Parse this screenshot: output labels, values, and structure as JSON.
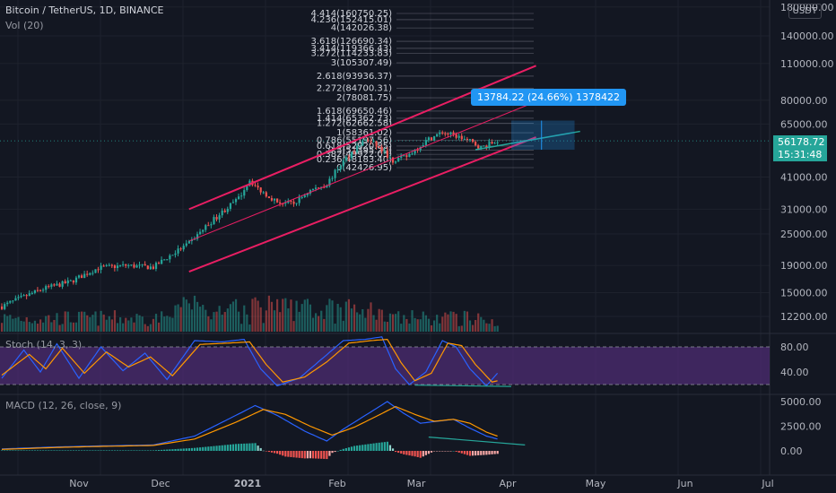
{
  "header": {
    "title": "Bitcoin / TetherUS, 1D, BINANCE",
    "volume_label": "Vol (20)",
    "currency_badge": "USDT"
  },
  "indicators": {
    "stoch_label": "Stoch (14, 3, 3)",
    "macd_label": "MACD (12, 26, close, 9)"
  },
  "last_price": {
    "value": "56178.72",
    "countdown": "15:31:48"
  },
  "measure_label": "13784.22 (24.66%) 1378422",
  "colors": {
    "background": "#131722",
    "up": "#26a69a",
    "down": "#ef5350",
    "channel": "#e91e63",
    "trendline": "#26a69a",
    "stoch_k": "#2962ff",
    "stoch_d": "#ff9800",
    "macd_line": "#2962ff",
    "signal_line": "#ff9800",
    "stoch_band": "#4a2a6e",
    "measure": "#2196f3"
  },
  "chart_data": [
    {
      "type": "candlestick",
      "title": "Bitcoin / TetherUS, 1D, BINANCE",
      "x_ticks": [
        "Nov",
        "Dec",
        "2021",
        "Feb",
        "Mar",
        "Apr",
        "May",
        "Jun",
        "Jul"
      ],
      "y_scale": "log",
      "y_ticks": [
        12200,
        15000,
        19000,
        25000,
        31000,
        41000,
        65000,
        80000,
        110000,
        140000,
        180000
      ],
      "y_tick_labels": [
        "12200.00",
        "15000.00",
        "19000.00",
        "25000.00",
        "31000.00",
        "41000.00",
        "65000.00",
        "80000.00",
        "110000.00",
        "140000.00",
        "180000.00"
      ],
      "close_waypoints": [
        [
          0,
          13300
        ],
        [
          15,
          15500
        ],
        [
          25,
          16500
        ],
        [
          35,
          18600
        ],
        [
          45,
          19000
        ],
        [
          55,
          18700
        ],
        [
          68,
          23000
        ],
        [
          78,
          29000
        ],
        [
          86,
          34000
        ],
        [
          90,
          40000
        ],
        [
          93,
          37000
        ],
        [
          100,
          33000
        ],
        [
          106,
          32500
        ],
        [
          112,
          36500
        ],
        [
          118,
          38500
        ],
        [
          124,
          47000
        ],
        [
          128,
          52000
        ],
        [
          132,
          57000
        ],
        [
          135,
          55000
        ],
        [
          142,
          47500
        ],
        [
          147,
          49000
        ],
        [
          155,
          57000
        ],
        [
          160,
          60500
        ],
        [
          165,
          58500
        ],
        [
          170,
          56000
        ],
        [
          174,
          53000
        ],
        [
          180,
          56178
        ]
      ],
      "fibonacci_levels": [
        {
          "ratio": "4.414",
          "price": "160750.25"
        },
        {
          "ratio": "4.236",
          "price": "152415.01"
        },
        {
          "ratio": "4",
          "price": "142026.38"
        },
        {
          "ratio": "3.618",
          "price": "126690.34"
        },
        {
          "ratio": "3.414",
          "price": "119366.43"
        },
        {
          "ratio": "3.272",
          "price": "114233.83"
        },
        {
          "ratio": "3",
          "price": "105307.49"
        },
        {
          "ratio": "2.618",
          "price": "93936.37"
        },
        {
          "ratio": "2.272",
          "price": "84700.31"
        },
        {
          "ratio": "2",
          "price": "78081.75"
        },
        {
          "ratio": "1.618",
          "price": "69650.46"
        },
        {
          "ratio": "1.414",
          "price": "65362.73"
        },
        {
          "ratio": "1.272",
          "price": "62662.58"
        },
        {
          "ratio": "1",
          "price": "58361.02"
        },
        {
          "ratio": "0.786",
          "price": "55197.56"
        },
        {
          "ratio": "0.618",
          "price": "52920.85"
        },
        {
          "ratio": "0.5",
          "price": "51395.20"
        },
        {
          "ratio": "0.382",
          "price": "49922.05"
        },
        {
          "ratio": "0.236",
          "price": "48183.40"
        },
        {
          "ratio": "0",
          "price": "42426.95"
        }
      ],
      "last_price": 56178.72
    },
    {
      "type": "line",
      "title": "Stoch (14, 3, 3)",
      "y_ticks": [
        40,
        80
      ],
      "y_tick_labels": [
        "40.00",
        "80.00"
      ],
      "band": [
        20,
        80
      ],
      "series": [
        {
          "name": "%K",
          "waypoints": [
            [
              0,
              30
            ],
            [
              8,
              75
            ],
            [
              14,
              40
            ],
            [
              20,
              85
            ],
            [
              28,
              30
            ],
            [
              36,
              80
            ],
            [
              44,
              42
            ],
            [
              52,
              70
            ],
            [
              60,
              28
            ],
            [
              70,
              90
            ],
            [
              80,
              88
            ],
            [
              88,
              92
            ],
            [
              94,
              45
            ],
            [
              100,
              18
            ],
            [
              108,
              30
            ],
            [
              116,
              60
            ],
            [
              124,
              90
            ],
            [
              132,
              92
            ],
            [
              138,
              96
            ],
            [
              143,
              45
            ],
            [
              148,
              20
            ],
            [
              154,
              40
            ],
            [
              160,
              90
            ],
            [
              165,
              80
            ],
            [
              170,
              45
            ],
            [
              176,
              18
            ],
            [
              180,
              38
            ]
          ]
        },
        {
          "name": "%D",
          "waypoints": [
            [
              0,
              35
            ],
            [
              10,
              68
            ],
            [
              16,
              45
            ],
            [
              22,
              78
            ],
            [
              30,
              38
            ],
            [
              38,
              72
            ],
            [
              46,
              48
            ],
            [
              54,
              64
            ],
            [
              62,
              34
            ],
            [
              72,
              84
            ],
            [
              82,
              86
            ],
            [
              90,
              88
            ],
            [
              96,
              52
            ],
            [
              102,
              24
            ],
            [
              110,
              32
            ],
            [
              118,
              56
            ],
            [
              126,
              86
            ],
            [
              134,
              90
            ],
            [
              140,
              92
            ],
            [
              145,
              55
            ],
            [
              150,
              26
            ],
            [
              156,
              38
            ],
            [
              162,
              86
            ],
            [
              167,
              82
            ],
            [
              172,
              52
            ],
            [
              178,
              24
            ],
            [
              180,
              26
            ]
          ]
        }
      ]
    },
    {
      "type": "line",
      "title": "MACD (12, 26, close, 9)",
      "y_ticks": [
        0,
        2500,
        5000
      ],
      "y_tick_labels": [
        "0.00",
        "2500.00",
        "5000.00"
      ],
      "series": [
        {
          "name": "MACD",
          "waypoints": [
            [
              0,
              200
            ],
            [
              20,
              400
            ],
            [
              35,
              500
            ],
            [
              55,
              600
            ],
            [
              70,
              1500
            ],
            [
              85,
              3600
            ],
            [
              92,
              4600
            ],
            [
              100,
              3600
            ],
            [
              110,
              2000
            ],
            [
              118,
              1000
            ],
            [
              124,
              2200
            ],
            [
              132,
              3600
            ],
            [
              140,
              5000
            ],
            [
              146,
              3800
            ],
            [
              152,
              2800
            ],
            [
              158,
              3000
            ],
            [
              164,
              3200
            ],
            [
              170,
              2300
            ],
            [
              176,
              1500
            ],
            [
              180,
              1200
            ]
          ]
        },
        {
          "name": "Signal",
          "waypoints": [
            [
              0,
              150
            ],
            [
              20,
              350
            ],
            [
              35,
              450
            ],
            [
              55,
              550
            ],
            [
              70,
              1200
            ],
            [
              85,
              2900
            ],
            [
              95,
              4200
            ],
            [
              103,
              3700
            ],
            [
              112,
              2500
            ],
            [
              120,
              1600
            ],
            [
              128,
              2400
            ],
            [
              136,
              3500
            ],
            [
              143,
              4500
            ],
            [
              150,
              3700
            ],
            [
              157,
              3000
            ],
            [
              164,
              3200
            ],
            [
              170,
              2800
            ],
            [
              176,
              1900
            ],
            [
              180,
              1500
            ]
          ]
        }
      ]
    }
  ]
}
